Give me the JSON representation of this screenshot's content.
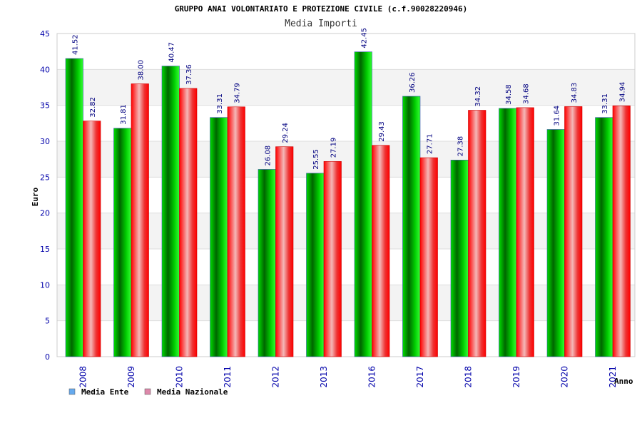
{
  "chart_data": {
    "type": "bar",
    "title": "GRUPPO ANAI VOLONTARIATO E PROTEZIONE CIVILE (c.f.90028220946)",
    "subtitle": "Media Importi",
    "xlabel": "Anno",
    "ylabel": "Euro",
    "ylim": [
      0,
      45
    ],
    "yticks": [
      0,
      5,
      10,
      15,
      20,
      25,
      30,
      35,
      40,
      45
    ],
    "grid": true,
    "legend_position": "bottom-left",
    "categories": [
      "2008",
      "2009",
      "2010",
      "2011",
      "2012",
      "2013",
      "2016",
      "2017",
      "2018",
      "2019",
      "2020",
      "2021"
    ],
    "series": [
      {
        "name": "Media Ente",
        "color": "#00aa00",
        "legend_color": "#66aaee",
        "values": [
          41.52,
          31.81,
          40.47,
          33.31,
          26.08,
          25.55,
          42.45,
          36.26,
          27.38,
          34.58,
          31.64,
          33.31
        ],
        "labels": [
          "41.52",
          "31.81",
          "40.47",
          "33.31",
          "26.08",
          "25.55",
          "42.45",
          "36.26",
          "27.38",
          "34.58",
          "31.64",
          "33.31"
        ]
      },
      {
        "name": "Media Nazionale",
        "color": "#ee0000",
        "legend_color": "#dd88aa",
        "values": [
          32.82,
          38.0,
          37.36,
          34.79,
          29.24,
          27.19,
          29.43,
          27.71,
          34.32,
          34.68,
          34.83,
          34.94
        ],
        "labels": [
          "32.82",
          "38.00",
          "37.36",
          "34.79",
          "29.24",
          "27.19",
          "29.43",
          "27.71",
          "34.32",
          "34.68",
          "34.83",
          "34.94"
        ]
      }
    ]
  }
}
